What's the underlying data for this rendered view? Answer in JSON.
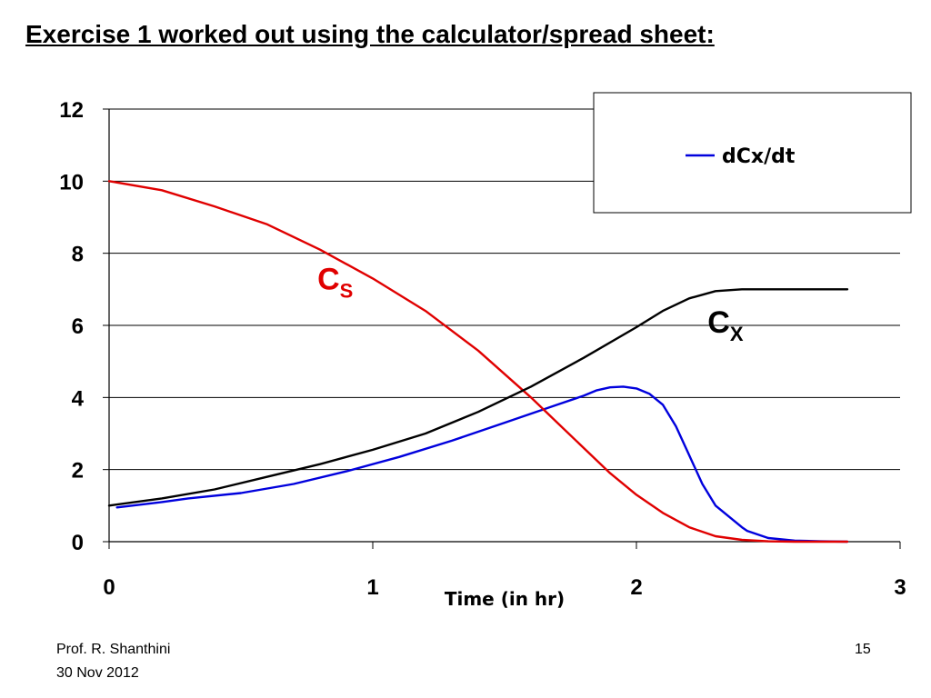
{
  "slide": {
    "title": "Exercise 1 worked out using the calculator/spread sheet:",
    "footer_author": "Prof. R. Shanthini",
    "footer_date": "30 Nov 2012",
    "page_number": "15"
  },
  "chart_data": {
    "type": "line",
    "title": "",
    "xlabel": "Time (in hr)",
    "ylabel": "",
    "xlim": [
      0,
      3
    ],
    "ylim": [
      0,
      12
    ],
    "x_ticks": [
      "0",
      "1",
      "2",
      "3"
    ],
    "y_ticks": [
      "0",
      "2",
      "4",
      "6",
      "8",
      "10",
      "12"
    ],
    "grid": "horizontal",
    "legend": {
      "placement": "top-right",
      "entries": [
        "dCx/dt"
      ]
    },
    "series": [
      {
        "name": "dCx/dt",
        "color": "#0000dd",
        "x": [
          0.03,
          0.2,
          0.3,
          0.5,
          0.7,
          0.9,
          1.1,
          1.3,
          1.5,
          1.7,
          1.8,
          1.85,
          1.9,
          1.95,
          2.0,
          2.05,
          2.1,
          2.15,
          2.2,
          2.25,
          2.3,
          2.35,
          2.4,
          2.42,
          2.5,
          2.6,
          2.7,
          2.8
        ],
        "y": [
          0.95,
          1.1,
          1.2,
          1.35,
          1.6,
          1.95,
          2.35,
          2.8,
          3.3,
          3.8,
          4.05,
          4.2,
          4.28,
          4.3,
          4.25,
          4.1,
          3.8,
          3.2,
          2.4,
          1.6,
          1.0,
          0.7,
          0.4,
          0.3,
          0.1,
          0.03,
          0.01,
          0.0
        ]
      },
      {
        "name": "",
        "color": "#e00000",
        "x": [
          0,
          0.2,
          0.4,
          0.6,
          0.8,
          1.0,
          1.2,
          1.4,
          1.6,
          1.7,
          1.8,
          1.9,
          2.0,
          2.1,
          2.2,
          2.3,
          2.4,
          2.5,
          2.6,
          2.7,
          2.8
        ],
        "y": [
          10,
          9.75,
          9.3,
          8.8,
          8.1,
          7.3,
          6.4,
          5.3,
          4.0,
          3.3,
          2.6,
          1.9,
          1.3,
          0.8,
          0.4,
          0.15,
          0.05,
          0.01,
          0.0,
          0.0,
          0.0
        ]
      },
      {
        "name": "",
        "color": "#000000",
        "x": [
          0,
          0.2,
          0.4,
          0.6,
          0.8,
          1.0,
          1.2,
          1.4,
          1.6,
          1.8,
          2.0,
          2.1,
          2.2,
          2.3,
          2.4,
          2.5,
          2.6,
          2.7,
          2.8
        ],
        "y": [
          1.0,
          1.2,
          1.45,
          1.8,
          2.15,
          2.55,
          3.0,
          3.6,
          4.3,
          5.1,
          5.95,
          6.4,
          6.75,
          6.95,
          7.0,
          7.0,
          7.0,
          7.0,
          7.0
        ]
      }
    ],
    "annotations": [
      {
        "main": "C",
        "sub": "S",
        "color": "#e00000",
        "x": 0.79,
        "y": 7.0
      },
      {
        "main": "C",
        "sub": "X",
        "color": "#000000",
        "x": 2.27,
        "y": 5.8
      }
    ]
  }
}
